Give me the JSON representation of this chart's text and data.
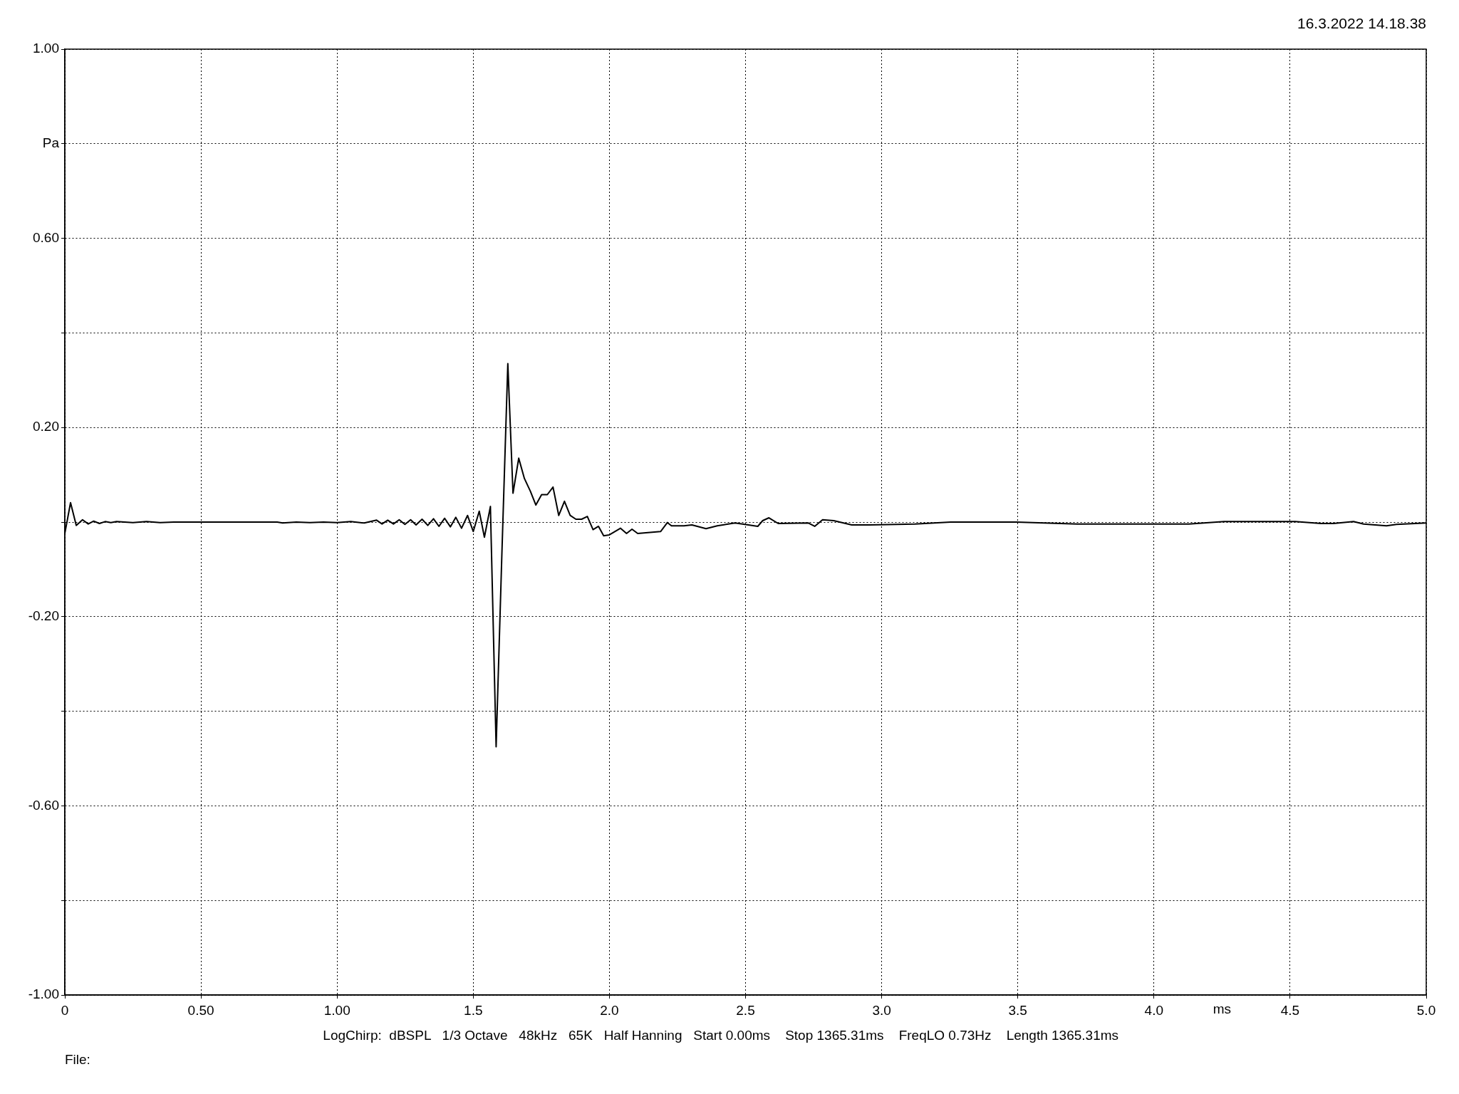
{
  "chart_data": {
    "type": "line",
    "xlabel": "ms",
    "ylabel": "Pa",
    "annotations": [
      "16.3.2022 14.18.38",
      "LogChirp:  dBSPL   1/3 Octave   48kHz   65K   Half Hanning   Start 0.00ms    Stop 1365.31ms    FreqLO 0.73Hz    Length 1365.31ms",
      "File:"
    ],
    "x": [
      0,
      0.021,
      0.042,
      0.065,
      0.086,
      0.106,
      0.127,
      0.148,
      0.169,
      0.19,
      0.25,
      0.3,
      0.35,
      0.4,
      0.5,
      0.6,
      0.78,
      0.8,
      0.85,
      0.9,
      0.95,
      1.0,
      1.05,
      1.1,
      1.145,
      1.165,
      1.186,
      1.207,
      1.228,
      1.249,
      1.27,
      1.29,
      1.312,
      1.333,
      1.354,
      1.374,
      1.395,
      1.416,
      1.436,
      1.457,
      1.479,
      1.5,
      1.522,
      1.541,
      1.563,
      1.584,
      1.605,
      1.627,
      1.646,
      1.667,
      1.688,
      1.71,
      1.73,
      1.751,
      1.772,
      1.793,
      1.814,
      1.835,
      1.856,
      1.877,
      1.898,
      1.919,
      1.94,
      1.96,
      1.979,
      2.0,
      2.041,
      2.063,
      2.083,
      2.104,
      2.15,
      2.188,
      2.213,
      2.228,
      2.274,
      2.303,
      2.355,
      2.396,
      2.461,
      2.489,
      2.545,
      2.563,
      2.586,
      2.62,
      2.731,
      2.754,
      2.783,
      2.824,
      2.89,
      2.955,
      3.122,
      3.253,
      3.495,
      3.718,
      4.128,
      4.258,
      4.519,
      4.614,
      4.659,
      4.733,
      4.77,
      4.854,
      4.891,
      5.0
    ],
    "series": [
      {
        "color": "#000000",
        "values": [
          -0.024,
          0.041,
          -0.007,
          0.005,
          -0.004,
          0.002,
          -0.003,
          0.001,
          -0.001,
          0.001,
          -0.001,
          0.001,
          -0.001,
          0,
          0,
          0,
          0,
          -0.002,
          0,
          -0.001,
          0,
          -0.001,
          0.001,
          -0.002,
          0.004,
          -0.004,
          0.004,
          -0.004,
          0.005,
          -0.005,
          0.005,
          -0.006,
          0.006,
          -0.007,
          0.007,
          -0.009,
          0.008,
          -0.01,
          0.01,
          -0.013,
          0.014,
          -0.02,
          0.023,
          -0.032,
          0.033,
          -0.475,
          -0.07,
          0.335,
          0.061,
          0.135,
          0.092,
          0.065,
          0.036,
          0.058,
          0.058,
          0.074,
          0.014,
          0.044,
          0.014,
          0.006,
          0.006,
          0.012,
          -0.016,
          -0.009,
          -0.029,
          -0.027,
          -0.013,
          -0.024,
          -0.015,
          -0.024,
          -0.022,
          -0.02,
          -0.001,
          -0.008,
          -0.008,
          -0.006,
          -0.014,
          -0.008,
          -0.002,
          -0.004,
          -0.009,
          0.003,
          0.009,
          -0.003,
          -0.002,
          -0.009,
          0.005,
          0.003,
          -0.006,
          -0.006,
          -0.004,
          0,
          0,
          -0.004,
          -0.004,
          0.001,
          0.001,
          -0.003,
          -0.003,
          0.001,
          -0.004,
          -0.008,
          -0.005,
          -0.002
        ]
      }
    ],
    "xlim": [
      0,
      5
    ],
    "ylim": [
      -1,
      1
    ],
    "xticks": [
      0,
      {
        "value": 0.5,
        "label": "0.50"
      },
      {
        "value": 1,
        "label": "1.00"
      },
      1.5,
      {
        "value": 2,
        "label": "2.0"
      },
      2.5,
      {
        "value": 3,
        "label": "3.0"
      },
      3.5,
      {
        "value": 4,
        "label": "4.0"
      },
      4.5,
      {
        "value": 5,
        "label": "5.0"
      }
    ],
    "yticks": [
      {
        "value": -1,
        "label": "-1.00"
      },
      {
        "value": -0.8,
        "label": null
      },
      {
        "value": -0.6,
        "label": "-0.60"
      },
      {
        "value": -0.4,
        "label": null
      },
      {
        "value": -0.2,
        "label": "-0.20"
      },
      {
        "value": 0,
        "label": null
      },
      {
        "value": 0.2,
        "label": "0.20"
      },
      {
        "value": 0.4,
        "label": null
      },
      {
        "value": 0.6,
        "label": "0.60"
      },
      {
        "value": 0.8,
        "label": null
      },
      {
        "value": 1,
        "label": "1.00"
      }
    ],
    "grid": true,
    "marker": "none",
    "line_style": "solid"
  }
}
